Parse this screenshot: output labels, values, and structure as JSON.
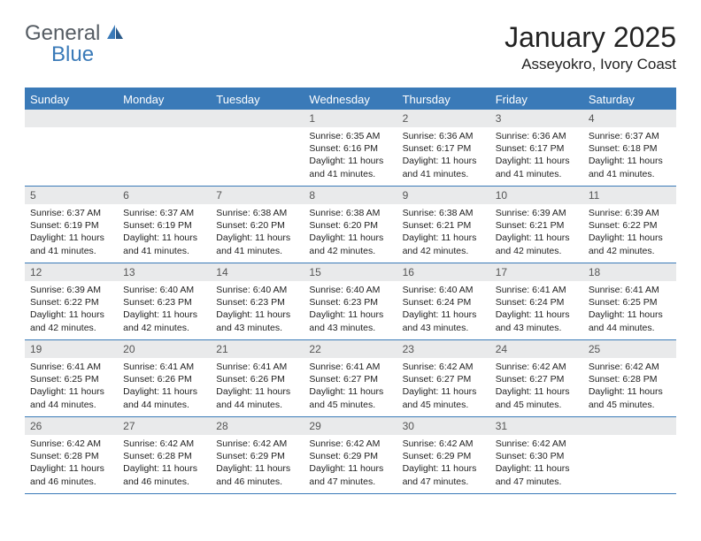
{
  "logo": {
    "text1": "General",
    "text2": "Blue"
  },
  "title": "January 2025",
  "location": "Asseyokro, Ivory Coast",
  "header_bg": "#3a7ab8",
  "daynum_bg": "#e9eaeb",
  "weekdays": [
    "Sunday",
    "Monday",
    "Tuesday",
    "Wednesday",
    "Thursday",
    "Friday",
    "Saturday"
  ],
  "weeks": [
    [
      {
        "day": "",
        "sunrise": "",
        "sunset": "",
        "daylight": ""
      },
      {
        "day": "",
        "sunrise": "",
        "sunset": "",
        "daylight": ""
      },
      {
        "day": "",
        "sunrise": "",
        "sunset": "",
        "daylight": ""
      },
      {
        "day": "1",
        "sunrise": "Sunrise: 6:35 AM",
        "sunset": "Sunset: 6:16 PM",
        "daylight": "Daylight: 11 hours and 41 minutes."
      },
      {
        "day": "2",
        "sunrise": "Sunrise: 6:36 AM",
        "sunset": "Sunset: 6:17 PM",
        "daylight": "Daylight: 11 hours and 41 minutes."
      },
      {
        "day": "3",
        "sunrise": "Sunrise: 6:36 AM",
        "sunset": "Sunset: 6:17 PM",
        "daylight": "Daylight: 11 hours and 41 minutes."
      },
      {
        "day": "4",
        "sunrise": "Sunrise: 6:37 AM",
        "sunset": "Sunset: 6:18 PM",
        "daylight": "Daylight: 11 hours and 41 minutes."
      }
    ],
    [
      {
        "day": "5",
        "sunrise": "Sunrise: 6:37 AM",
        "sunset": "Sunset: 6:19 PM",
        "daylight": "Daylight: 11 hours and 41 minutes."
      },
      {
        "day": "6",
        "sunrise": "Sunrise: 6:37 AM",
        "sunset": "Sunset: 6:19 PM",
        "daylight": "Daylight: 11 hours and 41 minutes."
      },
      {
        "day": "7",
        "sunrise": "Sunrise: 6:38 AM",
        "sunset": "Sunset: 6:20 PM",
        "daylight": "Daylight: 11 hours and 41 minutes."
      },
      {
        "day": "8",
        "sunrise": "Sunrise: 6:38 AM",
        "sunset": "Sunset: 6:20 PM",
        "daylight": "Daylight: 11 hours and 42 minutes."
      },
      {
        "day": "9",
        "sunrise": "Sunrise: 6:38 AM",
        "sunset": "Sunset: 6:21 PM",
        "daylight": "Daylight: 11 hours and 42 minutes."
      },
      {
        "day": "10",
        "sunrise": "Sunrise: 6:39 AM",
        "sunset": "Sunset: 6:21 PM",
        "daylight": "Daylight: 11 hours and 42 minutes."
      },
      {
        "day": "11",
        "sunrise": "Sunrise: 6:39 AM",
        "sunset": "Sunset: 6:22 PM",
        "daylight": "Daylight: 11 hours and 42 minutes."
      }
    ],
    [
      {
        "day": "12",
        "sunrise": "Sunrise: 6:39 AM",
        "sunset": "Sunset: 6:22 PM",
        "daylight": "Daylight: 11 hours and 42 minutes."
      },
      {
        "day": "13",
        "sunrise": "Sunrise: 6:40 AM",
        "sunset": "Sunset: 6:23 PM",
        "daylight": "Daylight: 11 hours and 42 minutes."
      },
      {
        "day": "14",
        "sunrise": "Sunrise: 6:40 AM",
        "sunset": "Sunset: 6:23 PM",
        "daylight": "Daylight: 11 hours and 43 minutes."
      },
      {
        "day": "15",
        "sunrise": "Sunrise: 6:40 AM",
        "sunset": "Sunset: 6:23 PM",
        "daylight": "Daylight: 11 hours and 43 minutes."
      },
      {
        "day": "16",
        "sunrise": "Sunrise: 6:40 AM",
        "sunset": "Sunset: 6:24 PM",
        "daylight": "Daylight: 11 hours and 43 minutes."
      },
      {
        "day": "17",
        "sunrise": "Sunrise: 6:41 AM",
        "sunset": "Sunset: 6:24 PM",
        "daylight": "Daylight: 11 hours and 43 minutes."
      },
      {
        "day": "18",
        "sunrise": "Sunrise: 6:41 AM",
        "sunset": "Sunset: 6:25 PM",
        "daylight": "Daylight: 11 hours and 44 minutes."
      }
    ],
    [
      {
        "day": "19",
        "sunrise": "Sunrise: 6:41 AM",
        "sunset": "Sunset: 6:25 PM",
        "daylight": "Daylight: 11 hours and 44 minutes."
      },
      {
        "day": "20",
        "sunrise": "Sunrise: 6:41 AM",
        "sunset": "Sunset: 6:26 PM",
        "daylight": "Daylight: 11 hours and 44 minutes."
      },
      {
        "day": "21",
        "sunrise": "Sunrise: 6:41 AM",
        "sunset": "Sunset: 6:26 PM",
        "daylight": "Daylight: 11 hours and 44 minutes."
      },
      {
        "day": "22",
        "sunrise": "Sunrise: 6:41 AM",
        "sunset": "Sunset: 6:27 PM",
        "daylight": "Daylight: 11 hours and 45 minutes."
      },
      {
        "day": "23",
        "sunrise": "Sunrise: 6:42 AM",
        "sunset": "Sunset: 6:27 PM",
        "daylight": "Daylight: 11 hours and 45 minutes."
      },
      {
        "day": "24",
        "sunrise": "Sunrise: 6:42 AM",
        "sunset": "Sunset: 6:27 PM",
        "daylight": "Daylight: 11 hours and 45 minutes."
      },
      {
        "day": "25",
        "sunrise": "Sunrise: 6:42 AM",
        "sunset": "Sunset: 6:28 PM",
        "daylight": "Daylight: 11 hours and 45 minutes."
      }
    ],
    [
      {
        "day": "26",
        "sunrise": "Sunrise: 6:42 AM",
        "sunset": "Sunset: 6:28 PM",
        "daylight": "Daylight: 11 hours and 46 minutes."
      },
      {
        "day": "27",
        "sunrise": "Sunrise: 6:42 AM",
        "sunset": "Sunset: 6:28 PM",
        "daylight": "Daylight: 11 hours and 46 minutes."
      },
      {
        "day": "28",
        "sunrise": "Sunrise: 6:42 AM",
        "sunset": "Sunset: 6:29 PM",
        "daylight": "Daylight: 11 hours and 46 minutes."
      },
      {
        "day": "29",
        "sunrise": "Sunrise: 6:42 AM",
        "sunset": "Sunset: 6:29 PM",
        "daylight": "Daylight: 11 hours and 47 minutes."
      },
      {
        "day": "30",
        "sunrise": "Sunrise: 6:42 AM",
        "sunset": "Sunset: 6:29 PM",
        "daylight": "Daylight: 11 hours and 47 minutes."
      },
      {
        "day": "31",
        "sunrise": "Sunrise: 6:42 AM",
        "sunset": "Sunset: 6:30 PM",
        "daylight": "Daylight: 11 hours and 47 minutes."
      },
      {
        "day": "",
        "sunrise": "",
        "sunset": "",
        "daylight": ""
      }
    ]
  ]
}
